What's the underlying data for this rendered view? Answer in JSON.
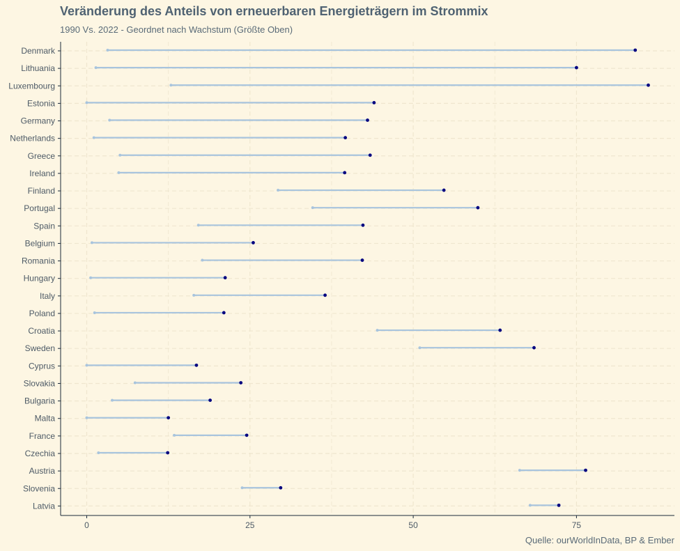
{
  "chart_data": {
    "type": "dumbbell",
    "title": "Veränderung des Anteils von erneuerbaren Energieträgern im Strommix",
    "subtitle": "1990 Vs. 2022 - Geordnet nach Wachstum (Größte Oben)",
    "caption": "Quelle: ourWorldInData, BP & Ember",
    "xlabel": "",
    "ylabel": "",
    "xlim": [
      -4,
      90
    ],
    "x_ticks": [
      0,
      25,
      50,
      75
    ],
    "grid": true,
    "colors": {
      "start_1990": "#a8c4dd",
      "end_2022": "#00007f",
      "segment": "#a8c4dd",
      "grid": "#efe6cf",
      "axis": "#1a2a3a"
    },
    "series": [
      {
        "key": "1990"
      },
      {
        "key": "2022"
      }
    ],
    "categories": [
      "Denmark",
      "Lithuania",
      "Luxembourg",
      "Estonia",
      "Germany",
      "Netherlands",
      "Greece",
      "Ireland",
      "Finland",
      "Portugal",
      "Spain",
      "Belgium",
      "Romania",
      "Hungary",
      "Italy",
      "Poland",
      "Croatia",
      "Sweden",
      "Cyprus",
      "Slovakia",
      "Bulgaria",
      "Malta",
      "France",
      "Czechia",
      "Austria",
      "Slovenia",
      "Latvia"
    ],
    "rows": [
      {
        "country": "Denmark",
        "v1990": 3.2,
        "v2022": 84.0
      },
      {
        "country": "Lithuania",
        "v1990": 1.4,
        "v2022": 75.0
      },
      {
        "country": "Luxembourg",
        "v1990": 12.9,
        "v2022": 86.0
      },
      {
        "country": "Estonia",
        "v1990": 0.0,
        "v2022": 44.0
      },
      {
        "country": "Germany",
        "v1990": 3.5,
        "v2022": 43.0
      },
      {
        "country": "Netherlands",
        "v1990": 1.1,
        "v2022": 39.6
      },
      {
        "country": "Greece",
        "v1990": 5.1,
        "v2022": 43.4
      },
      {
        "country": "Ireland",
        "v1990": 4.9,
        "v2022": 39.5
      },
      {
        "country": "Finland",
        "v1990": 29.3,
        "v2022": 54.7
      },
      {
        "country": "Portugal",
        "v1990": 34.6,
        "v2022": 59.9
      },
      {
        "country": "Spain",
        "v1990": 17.1,
        "v2022": 42.3
      },
      {
        "country": "Belgium",
        "v1990": 0.8,
        "v2022": 25.5
      },
      {
        "country": "Romania",
        "v1990": 17.7,
        "v2022": 42.2
      },
      {
        "country": "Hungary",
        "v1990": 0.6,
        "v2022": 21.2
      },
      {
        "country": "Italy",
        "v1990": 16.4,
        "v2022": 36.5
      },
      {
        "country": "Poland",
        "v1990": 1.2,
        "v2022": 21.0
      },
      {
        "country": "Croatia",
        "v1990": 44.5,
        "v2022": 63.3
      },
      {
        "country": "Sweden",
        "v1990": 51.0,
        "v2022": 68.5
      },
      {
        "country": "Cyprus",
        "v1990": 0.0,
        "v2022": 16.8
      },
      {
        "country": "Slovakia",
        "v1990": 7.4,
        "v2022": 23.6
      },
      {
        "country": "Bulgaria",
        "v1990": 3.9,
        "v2022": 18.9
      },
      {
        "country": "Malta",
        "v1990": 0.0,
        "v2022": 12.5
      },
      {
        "country": "France",
        "v1990": 13.4,
        "v2022": 24.5
      },
      {
        "country": "Czechia",
        "v1990": 1.8,
        "v2022": 12.4
      },
      {
        "country": "Austria",
        "v1990": 66.3,
        "v2022": 76.4
      },
      {
        "country": "Slovenia",
        "v1990": 23.8,
        "v2022": 29.7
      },
      {
        "country": "Latvia",
        "v1990": 67.9,
        "v2022": 72.3
      }
    ]
  }
}
